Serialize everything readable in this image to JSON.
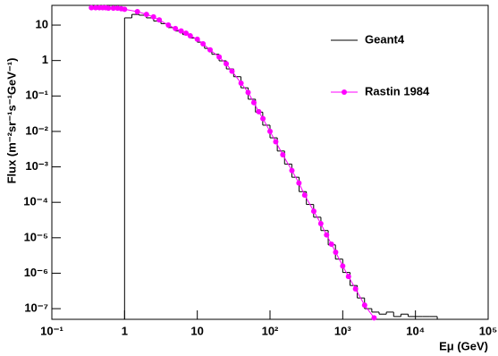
{
  "chart_data": {
    "type": "scatter",
    "xlabel": "Eμ (GeV)",
    "ylabel": "Flux (m⁻²sr⁻¹s⁻¹GeV⁻¹)",
    "xscale": "log",
    "yscale": "log",
    "xlim": [
      0.1,
      100000
    ],
    "ylim": [
      5e-08,
      36
    ],
    "xticks": [
      {
        "value": 0.1,
        "label": "10⁻¹"
      },
      1,
      10,
      {
        "value": 100,
        "label": "10²"
      },
      {
        "value": 1000,
        "label": "10³"
      },
      {
        "value": 10000,
        "label": "10⁴"
      },
      {
        "value": 100000,
        "label": "10⁵"
      }
    ],
    "yticks": [
      {
        "value": 1e-07,
        "label": "10⁻⁷"
      },
      {
        "value": 1e-06,
        "label": "10⁻⁶"
      },
      {
        "value": 1e-05,
        "label": "10⁻⁵"
      },
      {
        "value": 0.0001,
        "label": "10⁻⁴"
      },
      {
        "value": 0.001,
        "label": "10⁻³"
      },
      {
        "value": 0.01,
        "label": "10⁻²"
      },
      {
        "value": 0.1,
        "label": "10⁻¹"
      },
      1,
      10
    ],
    "histogram": {
      "name": "Geant4",
      "color": "#000000",
      "bins": [
        1,
        1.259,
        1.585,
        1.995,
        2.512,
        3.162,
        3.981,
        5.012,
        6.31,
        7.943,
        10,
        12.59,
        15.85,
        19.95,
        25.12,
        31.62,
        39.81,
        50.12,
        63.1,
        79.43,
        100,
        125.9,
        158.5,
        199.5,
        251.2,
        316.2,
        398.1,
        501.2,
        631,
        794.3,
        1000,
        1259,
        1585,
        1995,
        2512,
        3162,
        3981,
        5012,
        6310,
        7943,
        10000,
        12590,
        15850,
        19950
      ],
      "counts": [
        16,
        20,
        19,
        16,
        13,
        11,
        8.5,
        6.8,
        5.4,
        4.3,
        3.3,
        2.2,
        1.5,
        0.98,
        0.58,
        0.35,
        0.17,
        0.081,
        0.035,
        0.015,
        0.0066,
        0.0028,
        0.0012,
        0.00051,
        0.0002,
        8.7e-05,
        3.8e-05,
        1.6e-05,
        6.3e-06,
        2.5e-06,
        1.05e-06,
        4.5e-07,
        2e-07,
        1e-07,
        8e-08,
        7e-08,
        8e-08,
        6e-08,
        7e-08,
        6e-08,
        6e-08,
        6e-08,
        6e-08
      ]
    },
    "series": [
      {
        "name": "Rastin 1984",
        "color": "#ff00ff",
        "x": [
          0.35,
          0.4,
          0.45,
          0.5,
          0.55,
          0.6,
          0.7,
          0.8,
          0.9,
          1,
          1.5,
          2,
          2.5,
          3,
          4,
          5,
          6,
          7,
          8,
          10,
          12,
          15,
          20,
          25,
          30,
          40,
          50,
          60,
          70,
          80,
          100,
          120,
          150,
          200,
          250,
          300,
          400,
          500,
          600,
          700,
          800,
          1000,
          1200,
          1500,
          2000,
          2700
        ],
        "values": [
          31,
          31,
          31,
          31,
          31,
          30,
          30,
          30,
          29,
          28,
          24,
          20,
          17,
          14,
          10,
          8,
          6.8,
          5.9,
          5,
          4,
          2.95,
          2,
          1.26,
          0.81,
          0.5,
          0.23,
          0.126,
          0.065,
          0.036,
          0.023,
          0.01,
          0.0051,
          0.0022,
          0.00079,
          0.00035,
          0.00016,
          5.6e-05,
          2.5e-05,
          1.2e-05,
          6.6e-06,
          3.9e-06,
          1.6e-06,
          8.1e-07,
          3.6e-07,
          1.26e-07,
          5.5e-08
        ]
      }
    ]
  }
}
